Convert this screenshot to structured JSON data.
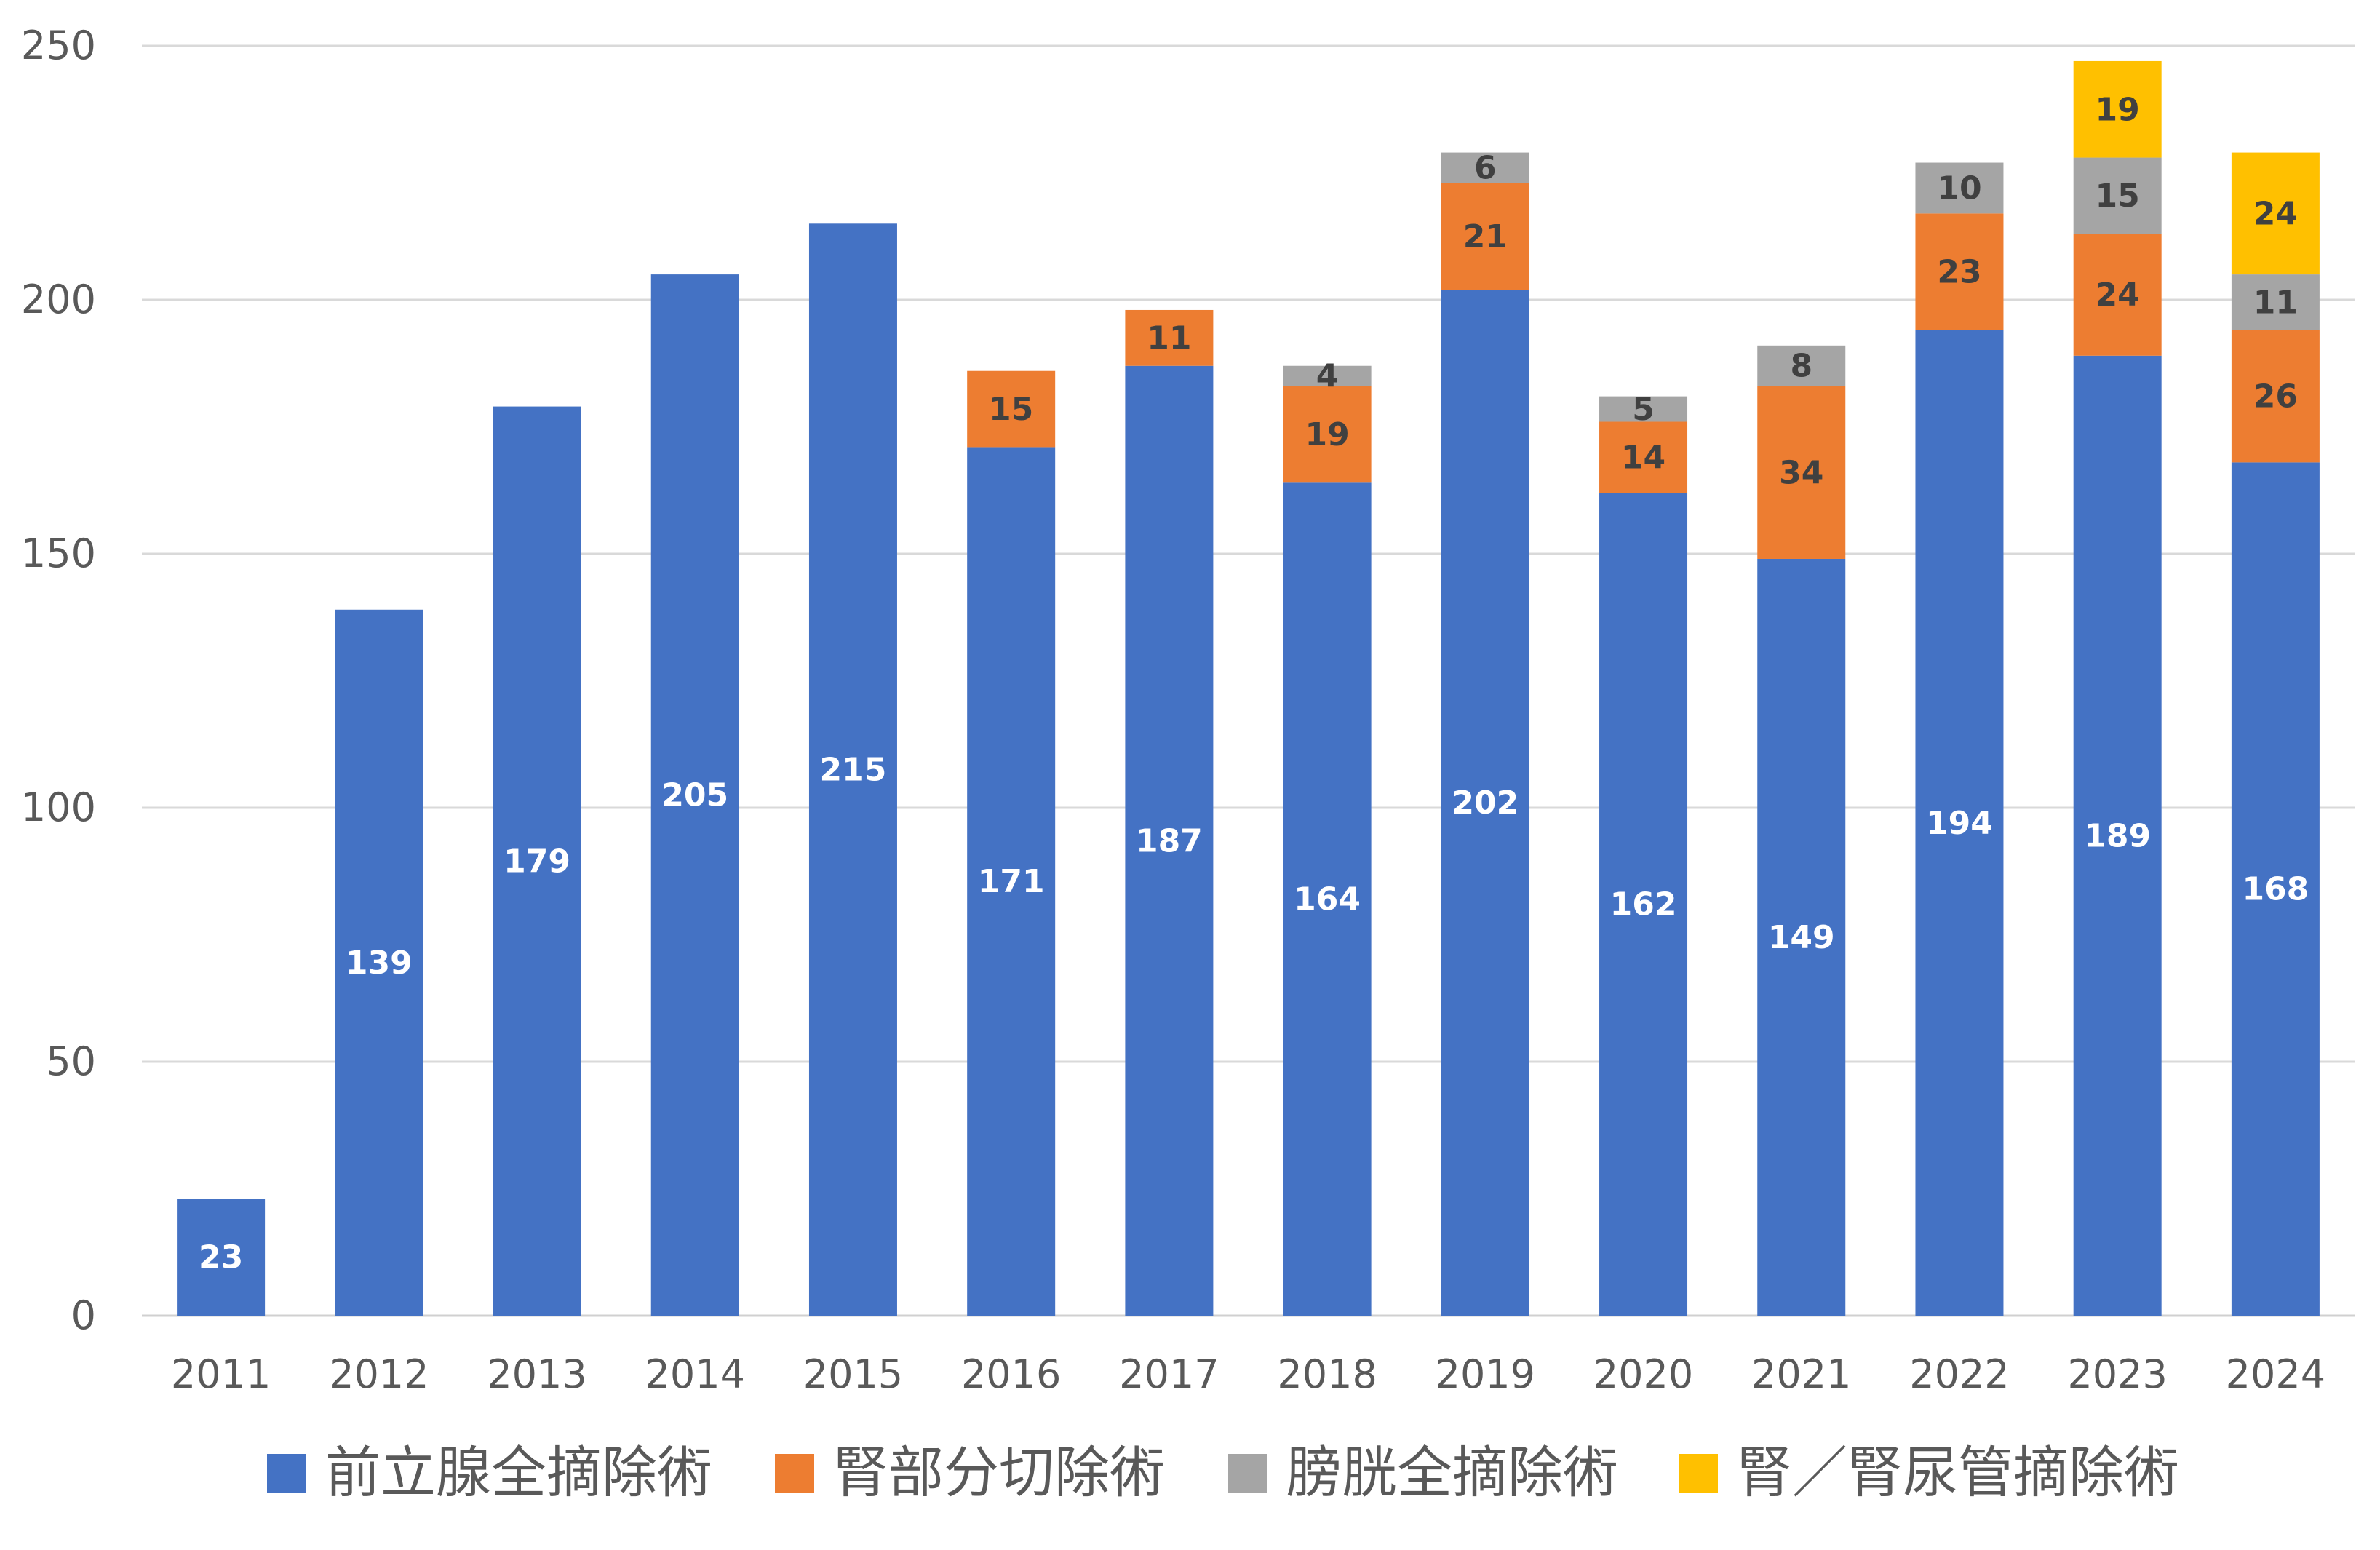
{
  "chart_data": {
    "type": "bar",
    "stacked": true,
    "title": "",
    "xlabel": "",
    "ylabel": "",
    "ylim": [
      0,
      250
    ],
    "yticks": [
      0,
      50,
      100,
      150,
      200,
      250
    ],
    "grid": true,
    "legend_position": "bottom",
    "categories": [
      "2011",
      "2012",
      "2013",
      "2014",
      "2015",
      "2016",
      "2017",
      "2018",
      "2019",
      "2020",
      "2021",
      "2022",
      "2023",
      "2024"
    ],
    "series": [
      {
        "name": "前立腺全摘除術",
        "color": "#4472C4",
        "label_color": "#FFFFFF",
        "values": [
          23,
          139,
          179,
          205,
          215,
          171,
          187,
          164,
          202,
          162,
          149,
          194,
          189,
          168
        ]
      },
      {
        "name": "腎部分切除術",
        "color": "#ED7D31",
        "label_color": "#404040",
        "values": [
          null,
          null,
          null,
          null,
          null,
          15,
          11,
          19,
          21,
          14,
          34,
          23,
          24,
          26
        ]
      },
      {
        "name": "膀胱全摘除術",
        "color": "#A5A5A5",
        "label_color": "#404040",
        "values": [
          null,
          null,
          null,
          null,
          null,
          null,
          null,
          4,
          6,
          5,
          8,
          10,
          15,
          11
        ]
      },
      {
        "name": "腎／腎尿管摘除術",
        "color": "#FFC000",
        "label_color": "#404040",
        "values": [
          null,
          null,
          null,
          null,
          null,
          null,
          null,
          null,
          null,
          null,
          null,
          null,
          19,
          24
        ]
      }
    ]
  }
}
